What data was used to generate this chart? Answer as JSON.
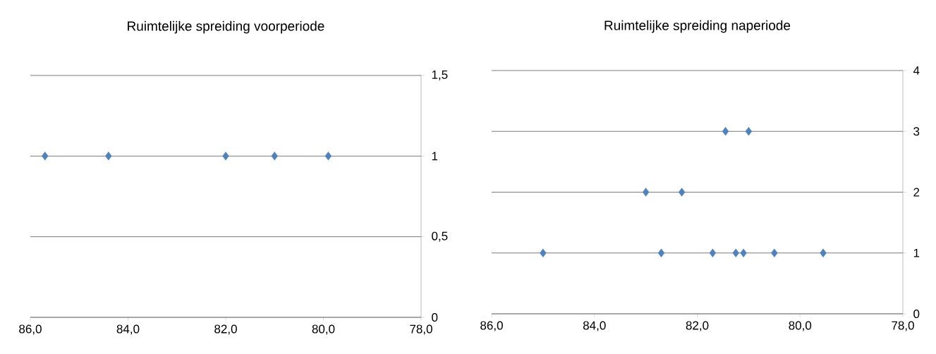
{
  "chart_data": [
    {
      "type": "scatter",
      "title": "Ruimtelijke spreiding voorperiode",
      "x": [
        85.7,
        84.4,
        82.0,
        81.0,
        79.9
      ],
      "values": [
        1,
        1,
        1,
        1,
        1
      ],
      "color": "#4f81bd",
      "marker": "diamond",
      "xlim": [
        86,
        78
      ],
      "ylim": [
        0,
        1.5
      ],
      "xticks": [
        {
          "value": 86,
          "label": "86,0"
        },
        {
          "value": 84,
          "label": "84,0"
        },
        {
          "value": 82,
          "label": "82,0"
        },
        {
          "value": 80,
          "label": "80,0"
        },
        {
          "value": 78,
          "label": "78,0"
        }
      ],
      "yticks": [
        0,
        {
          "value": 0.5,
          "label": "0,5"
        },
        1,
        {
          "value": 1.5,
          "label": "1,5"
        }
      ],
      "grid": "y"
    },
    {
      "type": "scatter",
      "title": "Ruimtelijke spreiding naperiode",
      "x": [
        85.0,
        82.7,
        81.7,
        81.25,
        81.1,
        80.5,
        79.55,
        83.0,
        82.3,
        81.45,
        81.0
      ],
      "values": [
        1,
        1,
        1,
        1,
        1,
        1,
        1,
        2,
        2,
        3,
        3
      ],
      "color": "#4f81bd",
      "marker": "diamond",
      "xlim": [
        86,
        78
      ],
      "ylim": [
        0,
        4
      ],
      "xticks": [
        {
          "value": 86,
          "label": "86,0"
        },
        {
          "value": 84,
          "label": "84,0"
        },
        {
          "value": 82,
          "label": "82,0"
        },
        {
          "value": 80,
          "label": "80,0"
        },
        {
          "value": 78,
          "label": "78,0"
        }
      ],
      "yticks": [
        0,
        1,
        2,
        3,
        4
      ],
      "grid": "y"
    }
  ]
}
